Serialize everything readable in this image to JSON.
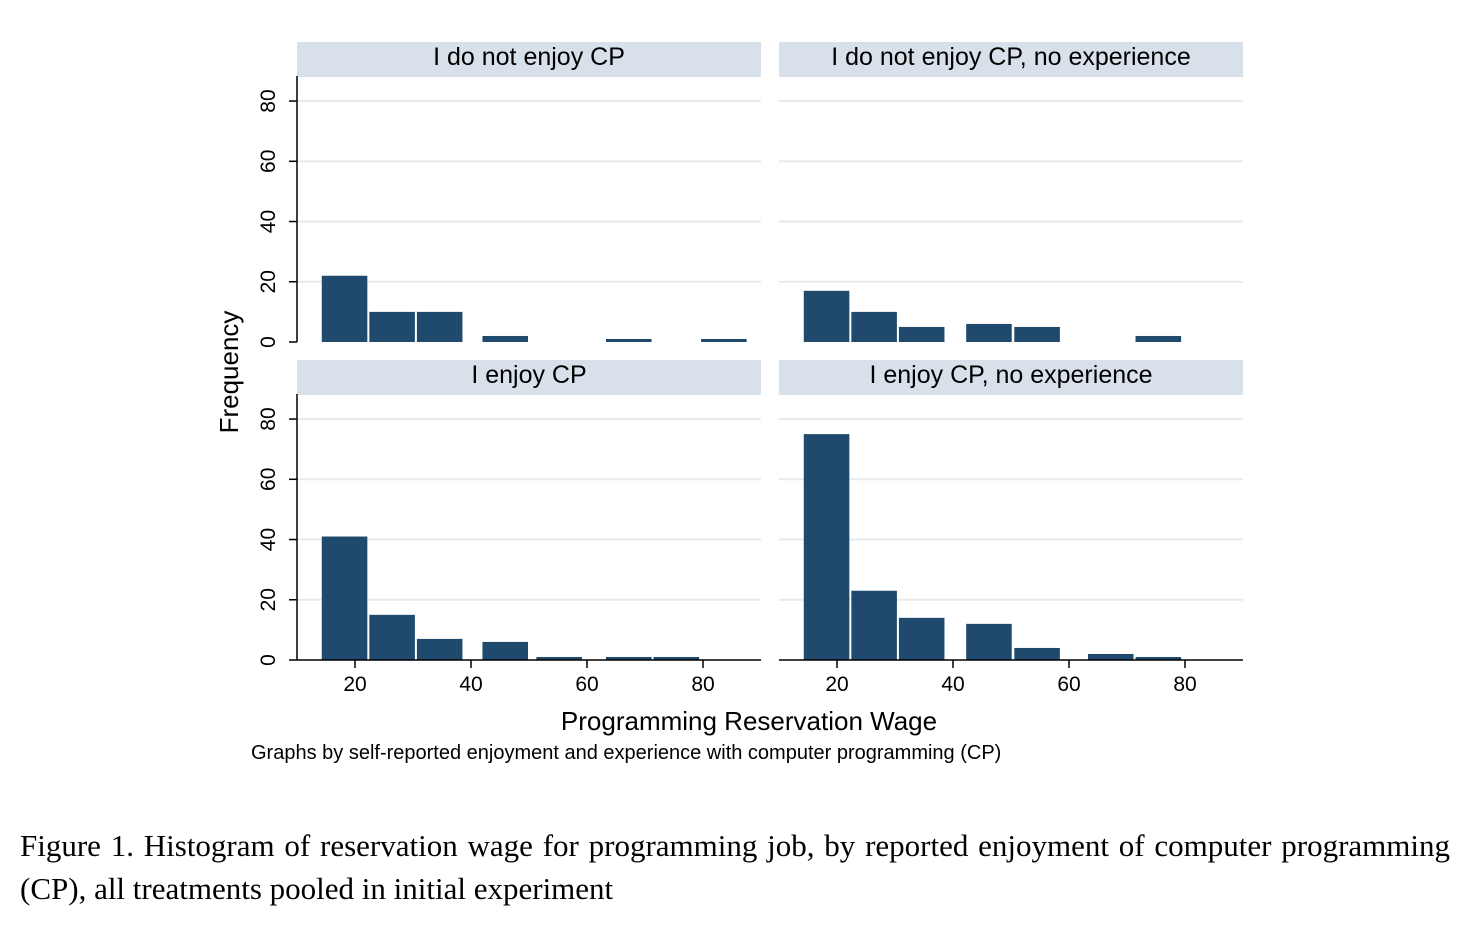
{
  "chart_data": {
    "type": "bar",
    "layout": "2x2 small multiples",
    "xlabel": "Programming Reservation Wage",
    "ylabel": "Frequency",
    "note": "Graphs by self-reported enjoyment and experience with computer programming (CP)",
    "xlim": [
      10,
      90
    ],
    "ylim": [
      0,
      85
    ],
    "x_ticks": [
      20,
      40,
      60,
      80
    ],
    "y_ticks": [
      0,
      20,
      40,
      60,
      80
    ],
    "bin_width": 8.2,
    "bar_color": "#1f4a6e",
    "strip_color": "#d8e1ea",
    "grid_color": "#e6ebf0",
    "panels": [
      {
        "title": "I do not enjoy CP",
        "bins": [
          {
            "x": 18.2,
            "y": 22
          },
          {
            "x": 26.4,
            "y": 10
          },
          {
            "x": 34.6,
            "y": 10
          },
          {
            "x": 42.8,
            "y": 0
          },
          {
            "x": 45.9,
            "y": 2
          },
          {
            "x": 67.2,
            "y": 1
          },
          {
            "x": 83.6,
            "y": 1
          }
        ]
      },
      {
        "title": "I do not enjoy CP, no experience",
        "bins": [
          {
            "x": 18.2,
            "y": 17
          },
          {
            "x": 26.4,
            "y": 10
          },
          {
            "x": 34.6,
            "y": 5
          },
          {
            "x": 46.2,
            "y": 6
          },
          {
            "x": 54.5,
            "y": 5
          },
          {
            "x": 75.4,
            "y": 2
          }
        ]
      },
      {
        "title": "I enjoy CP",
        "bins": [
          {
            "x": 18.2,
            "y": 41
          },
          {
            "x": 26.4,
            "y": 15
          },
          {
            "x": 34.6,
            "y": 7
          },
          {
            "x": 45.9,
            "y": 6
          },
          {
            "x": 55.2,
            "y": 1
          },
          {
            "x": 67.2,
            "y": 1
          },
          {
            "x": 75.4,
            "y": 1
          }
        ]
      },
      {
        "title": "I enjoy CP, no experience",
        "bins": [
          {
            "x": 18.2,
            "y": 75
          },
          {
            "x": 26.4,
            "y": 23
          },
          {
            "x": 34.6,
            "y": 14
          },
          {
            "x": 46.2,
            "y": 12
          },
          {
            "x": 54.5,
            "y": 4
          },
          {
            "x": 67.2,
            "y": 2
          },
          {
            "x": 75.4,
            "y": 1
          }
        ]
      }
    ]
  },
  "caption": "Figure 1.  Histogram of reservation wage for programming job, by reported enjoyment of computer programming (CP), all treatments pooled in initial experiment"
}
